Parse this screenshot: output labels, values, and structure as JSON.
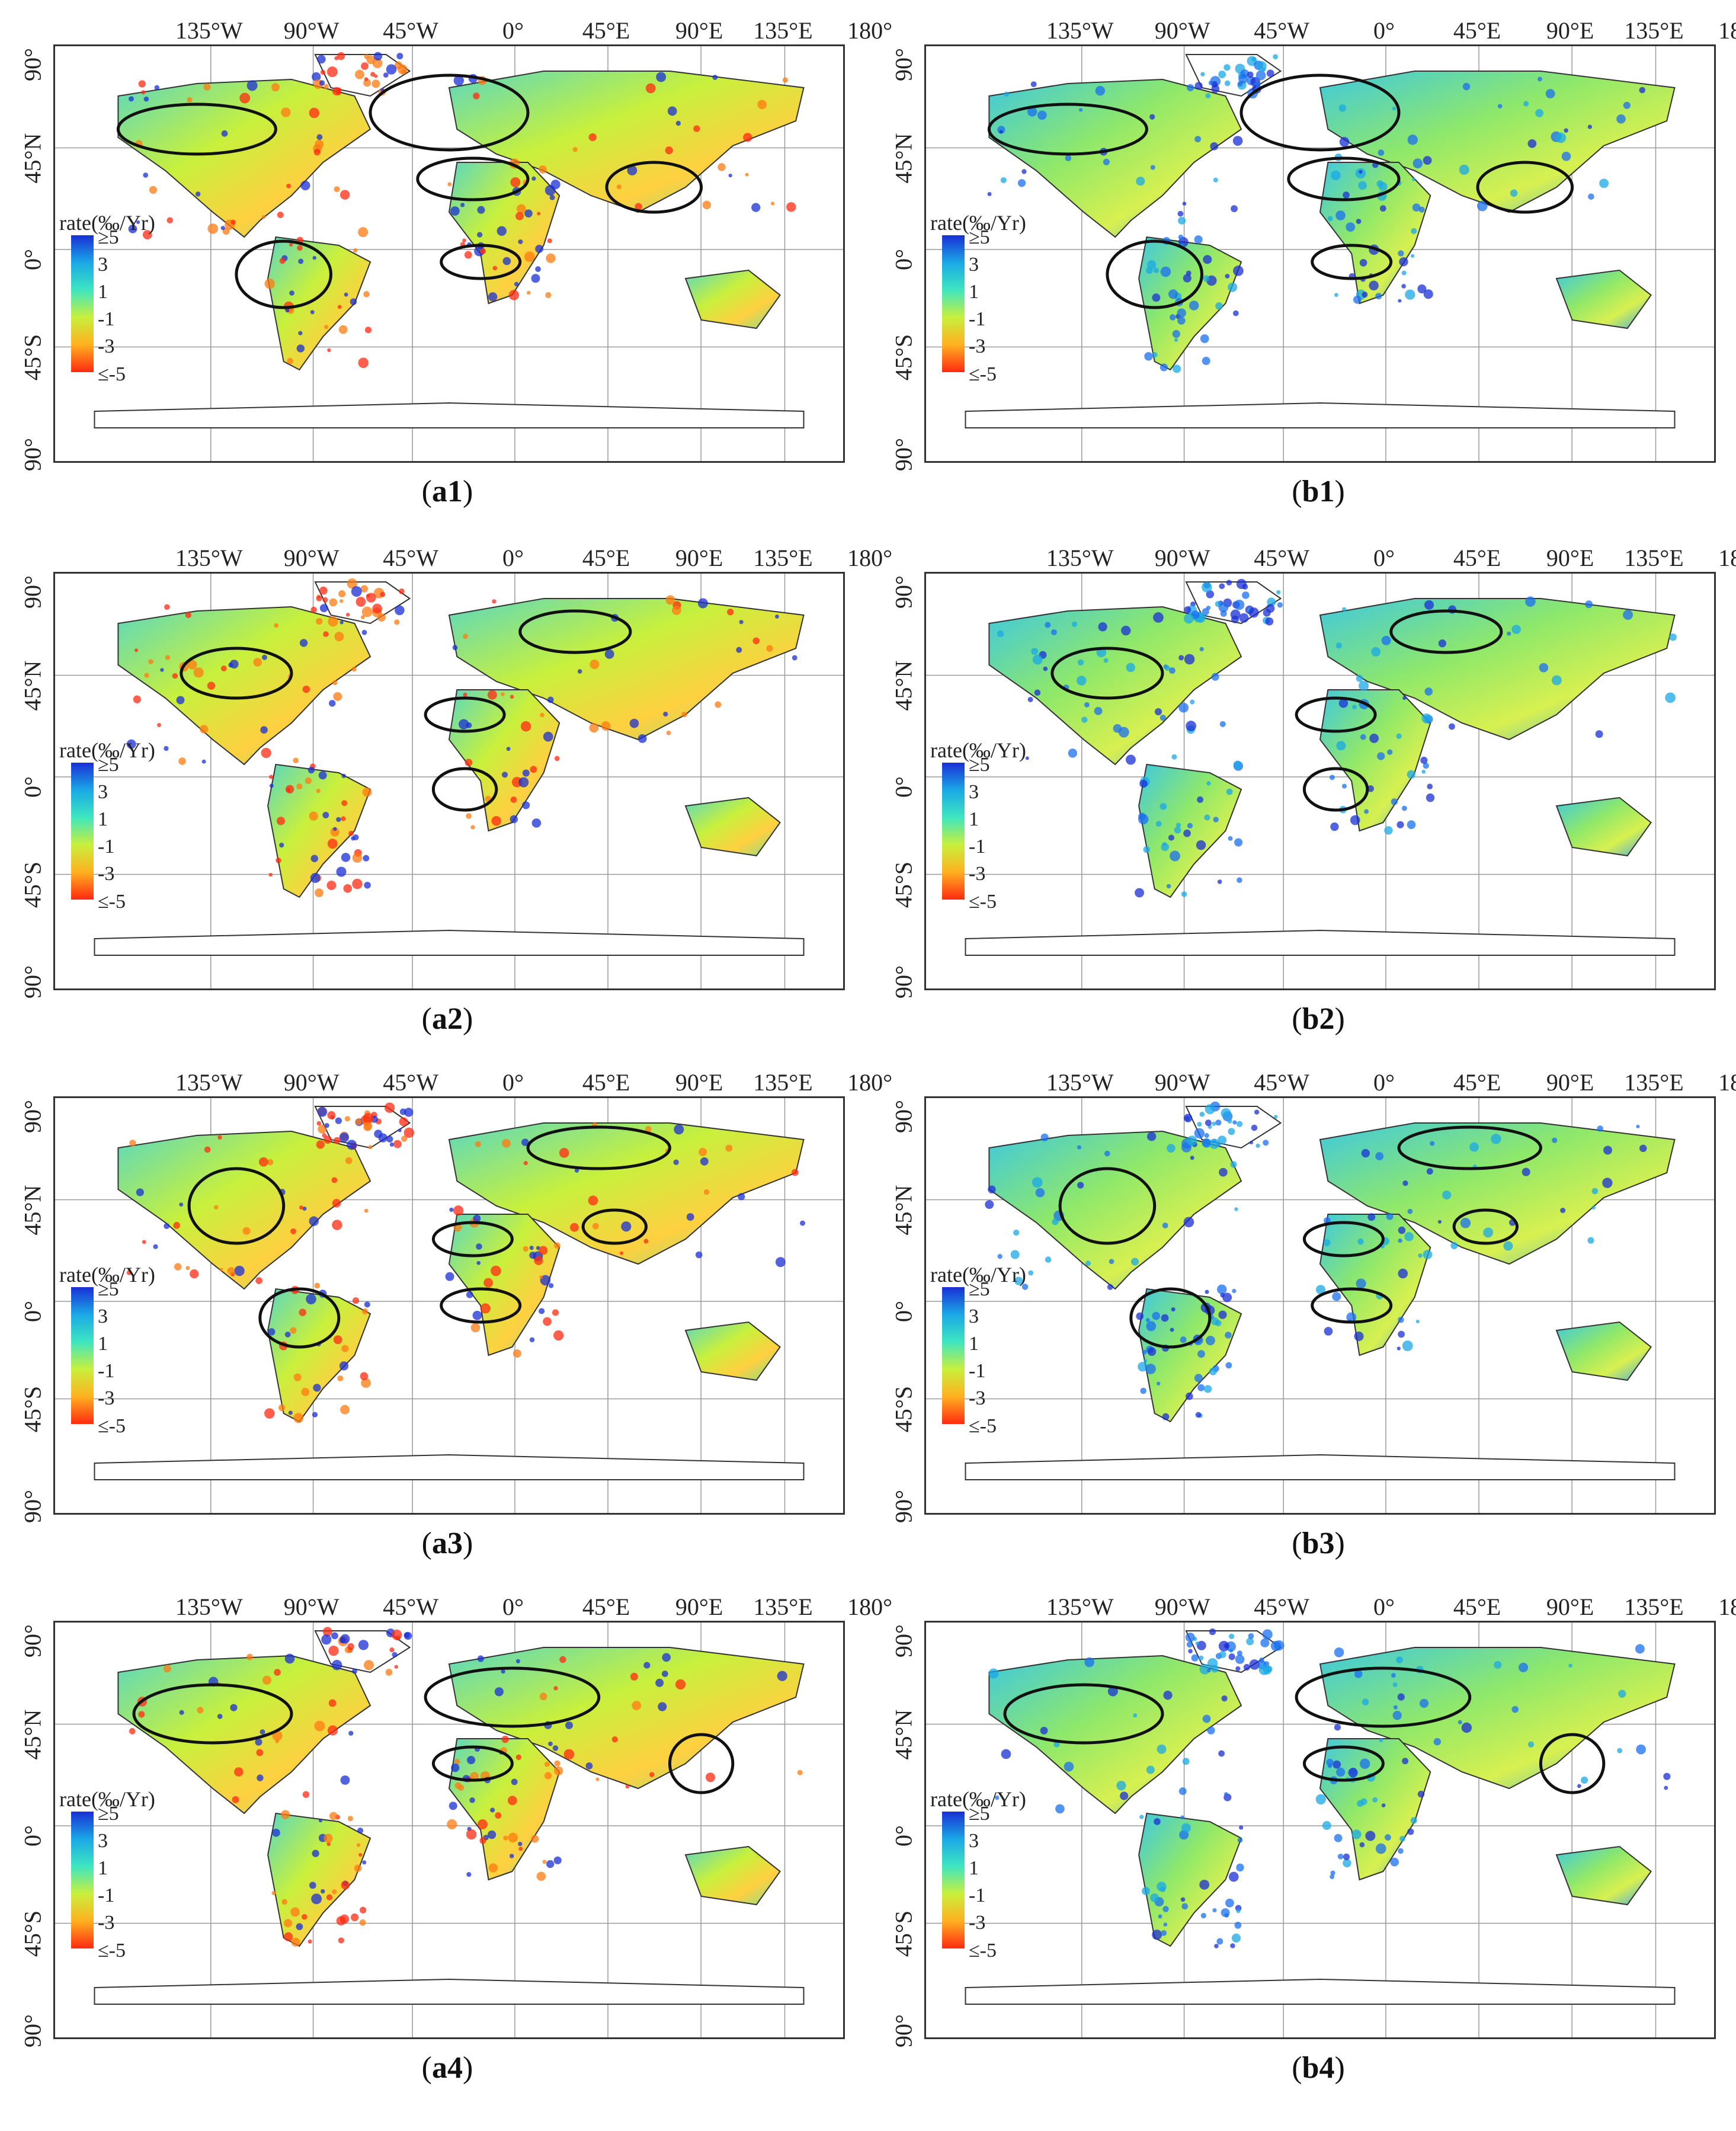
{
  "longitude_labels": [
    "135°W",
    "90°W",
    "45°W",
    "0°",
    "45°E",
    "90°E",
    "135°E",
    "180°"
  ],
  "latitude_labels": [
    "90°",
    "45°N",
    "0°",
    "45°S",
    "90°"
  ],
  "legend": {
    "title": "rate(‰/Yr)",
    "ticks": [
      "≥5",
      "3",
      "1",
      "-1",
      "-3",
      "≤-5"
    ],
    "colors": [
      "#1a2fd6",
      "#1aa8e6",
      "#3ee6c0",
      "#c8f03c",
      "#ffb020",
      "#ff2a10"
    ]
  },
  "panels": [
    {
      "letter": "a",
      "num": "1",
      "tone": "mixed-red"
    },
    {
      "letter": "b",
      "num": "1",
      "tone": "mixed-blue"
    },
    {
      "letter": "a",
      "num": "2",
      "tone": "mixed-red"
    },
    {
      "letter": "b",
      "num": "2",
      "tone": "mixed-blue"
    },
    {
      "letter": "a",
      "num": "3",
      "tone": "mixed-red"
    },
    {
      "letter": "b",
      "num": "3",
      "tone": "mixed-blue"
    },
    {
      "letter": "a",
      "num": "4",
      "tone": "mixed-red"
    },
    {
      "letter": "b",
      "num": "4",
      "tone": "mixed-blue"
    }
  ]
}
